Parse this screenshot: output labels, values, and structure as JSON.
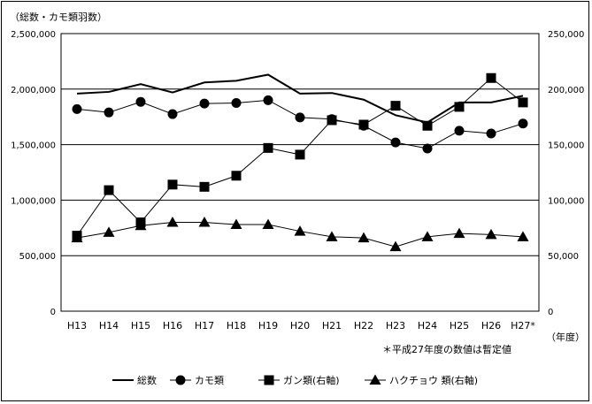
{
  "chart_data": {
    "type": "line",
    "title": "（総数・カモ類羽数）",
    "x_unit": "（年度）",
    "note": "＊平成27年度の数値は暫定値",
    "categories": [
      "H13",
      "H14",
      "H15",
      "H16",
      "H17",
      "H18",
      "H19",
      "H20",
      "H21",
      "H22",
      "H23",
      "H24",
      "H25",
      "H26",
      "H27*"
    ],
    "ylim_left": [
      0,
      2500000
    ],
    "yticks_left": [
      "0",
      "500,000",
      "1,000,000",
      "1,500,000",
      "2,000,000",
      "2,500,000"
    ],
    "ylim_right": [
      0,
      250000
    ],
    "yticks_right": [
      "0",
      "50,000",
      "100,000",
      "150,000",
      "200,000",
      "250,000"
    ],
    "grid": "horizontal",
    "legend_position": "bottom",
    "series": [
      {
        "name": "総数",
        "axis": "left",
        "marker": "none",
        "values": [
          1960000,
          1975000,
          2045000,
          1970000,
          2060000,
          2075000,
          2130000,
          1960000,
          1965000,
          1905000,
          1765000,
          1700000,
          1880000,
          1880000,
          1940000
        ]
      },
      {
        "name": "カモ類",
        "axis": "left",
        "marker": "circle",
        "values": [
          1820000,
          1790000,
          1885000,
          1775000,
          1870000,
          1875000,
          1900000,
          1745000,
          1730000,
          1670000,
          1520000,
          1465000,
          1625000,
          1600000,
          1690000
        ]
      },
      {
        "name": "ガン類(右軸)",
        "axis": "right",
        "marker": "square",
        "values": [
          68000,
          109000,
          80000,
          114000,
          112000,
          122000,
          147000,
          141000,
          172000,
          168000,
          185000,
          167000,
          184000,
          210000,
          188000
        ]
      },
      {
        "name": "ハクチョウ 類(右軸)",
        "axis": "right",
        "marker": "triangle",
        "values": [
          66000,
          71000,
          77000,
          80000,
          80000,
          78000,
          78000,
          72000,
          67000,
          66000,
          58000,
          67000,
          70000,
          69000,
          67000
        ]
      }
    ]
  }
}
